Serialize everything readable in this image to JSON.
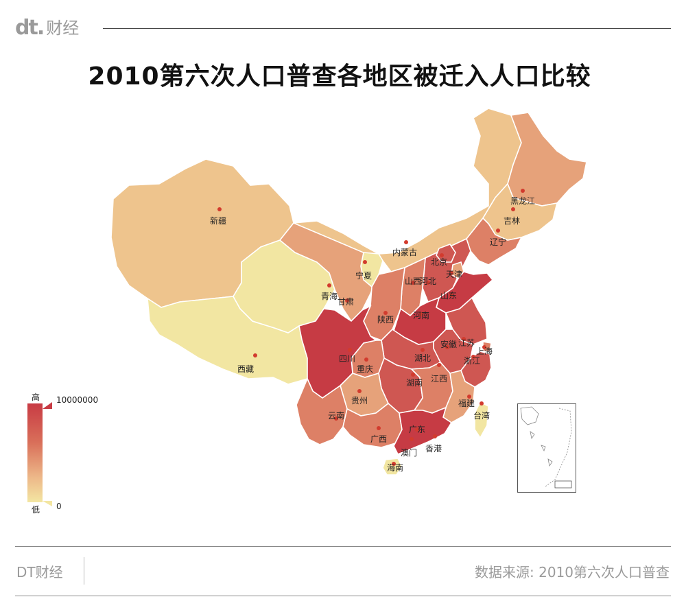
{
  "header": {
    "logo_mark": "dt.",
    "logo_text": "财经"
  },
  "title": "2010第六次人口普查各地区被迁入人口比较",
  "legend": {
    "high_label": "高",
    "low_label": "低",
    "max_value": "10000000",
    "min_value": "0"
  },
  "colors": {
    "very_low": "#f2e6a2",
    "low": "#eec48d",
    "mid_low": "#e6a27a",
    "mid": "#dd8066",
    "high": "#cf5752",
    "very_high": "#c63b44",
    "marker": "#d23b2e"
  },
  "regions": [
    {
      "key": "xinjiang",
      "name": "新疆",
      "level": "low"
    },
    {
      "key": "xizang",
      "name": "西藏",
      "level": "very_low"
    },
    {
      "key": "qinghai",
      "name": "青海",
      "level": "very_low"
    },
    {
      "key": "gansu",
      "name": "甘肃",
      "level": "mid_low"
    },
    {
      "key": "neimenggu",
      "name": "内蒙古",
      "level": "low"
    },
    {
      "key": "ningxia",
      "name": "宁夏",
      "level": "very_low"
    },
    {
      "key": "heilongjiang",
      "name": "黑龙江",
      "level": "mid_low"
    },
    {
      "key": "jilin",
      "name": "吉林",
      "level": "low"
    },
    {
      "key": "liaoning",
      "name": "辽宁",
      "level": "mid"
    },
    {
      "key": "beijing",
      "name": "北京",
      "level": "high"
    },
    {
      "key": "tianjin",
      "name": "天津",
      "level": "mid_low"
    },
    {
      "key": "hebei",
      "name": "河北",
      "level": "high"
    },
    {
      "key": "shanxi",
      "name": "山西",
      "level": "mid"
    },
    {
      "key": "shandong",
      "name": "山东",
      "level": "very_high"
    },
    {
      "key": "shaanxi",
      "name": "陕西",
      "level": "mid"
    },
    {
      "key": "henan",
      "name": "河南",
      "level": "very_high"
    },
    {
      "key": "jiangsu",
      "name": "江苏",
      "level": "high"
    },
    {
      "key": "anhui",
      "name": "安徽",
      "level": "high"
    },
    {
      "key": "shanghai",
      "name": "上海",
      "level": "mid"
    },
    {
      "key": "zhejiang",
      "name": "浙江",
      "level": "high"
    },
    {
      "key": "hubei",
      "name": "湖北",
      "level": "high"
    },
    {
      "key": "hunan",
      "name": "湖南",
      "level": "high"
    },
    {
      "key": "jiangxi",
      "name": "江西",
      "level": "mid"
    },
    {
      "key": "sichuan",
      "name": "四川",
      "level": "very_high"
    },
    {
      "key": "chongqing",
      "name": "重庆",
      "level": "mid"
    },
    {
      "key": "guizhou",
      "name": "贵州",
      "level": "mid_low"
    },
    {
      "key": "yunnan",
      "name": "云南",
      "level": "mid"
    },
    {
      "key": "guangxi",
      "name": "广西",
      "level": "mid"
    },
    {
      "key": "guangdong",
      "name": "广东",
      "level": "very_high"
    },
    {
      "key": "fujian",
      "name": "福建",
      "level": "mid_low"
    },
    {
      "key": "taiwan",
      "name": "台湾",
      "level": "very_low"
    },
    {
      "key": "hainan",
      "name": "海南",
      "level": "very_low"
    },
    {
      "key": "xianggang",
      "name": "香港",
      "level": "none"
    },
    {
      "key": "aomen",
      "name": "澳门",
      "level": "none"
    }
  ],
  "footer": {
    "brand": "DT财经",
    "source": "数据来源: 2010第六次人口普查"
  }
}
